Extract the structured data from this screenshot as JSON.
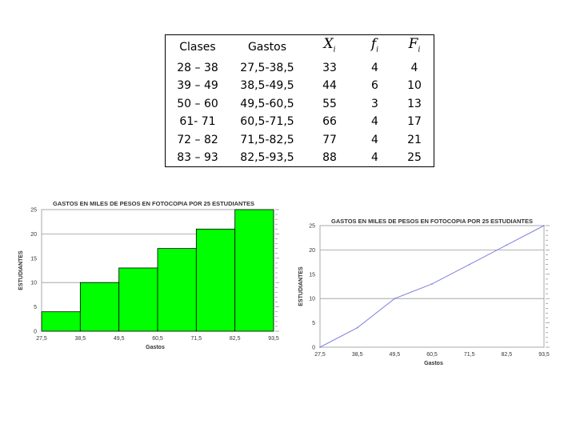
{
  "table": {
    "headers": {
      "clases": "Clases",
      "gastos": "Gastos",
      "xi_base": "X",
      "xi_sub": "i",
      "fi_base": "f",
      "fi_sub": "i",
      "Fi_base": "F",
      "Fi_sub": "i"
    },
    "rows": [
      [
        "28 – 38",
        "27,5-38,5",
        "33",
        "4",
        "4"
      ],
      [
        "39 – 49",
        "38,5-49,5",
        "44",
        "6",
        "10"
      ],
      [
        "50 – 60",
        "49,5-60,5",
        "55",
        "3",
        "13"
      ],
      [
        "61- 71",
        "60,5-71,5",
        "66",
        "4",
        "17"
      ],
      [
        "72 – 82",
        "71,5-82,5",
        "77",
        "4",
        "21"
      ],
      [
        "83 – 93",
        "82,5-93,5",
        "88",
        "4",
        "25"
      ]
    ]
  },
  "chart_data": [
    {
      "type": "bar",
      "title": "GASTOS EN MILES DE PESOS EN FOTOCOPIA POR 25 ESTUDIANTES",
      "xlabel": "Gastos",
      "ylabel": "ESTUDIANTES",
      "x_ticks": [
        "27,5",
        "38,5",
        "49,5",
        "60,5",
        "71,5",
        "82,5",
        "93,5"
      ],
      "edges": [
        27.5,
        38.5,
        49.5,
        60.5,
        71.5,
        82.5,
        93.5
      ],
      "values": [
        4,
        10,
        13,
        17,
        21,
        25
      ],
      "xlim": [
        27.5,
        93.5
      ],
      "ylim": [
        0,
        25
      ],
      "y_ticks": [
        0,
        5,
        10,
        15,
        20,
        25
      ],
      "bar_color": "#00ff00",
      "grid": true
    },
    {
      "type": "line",
      "title": "GASTOS EN MILES DE PESOS EN FOTOCOPIA POR 25 ESTUDIANTES",
      "xlabel": "Gastos",
      "ylabel": "ESTUDIANTES",
      "x_ticks": [
        "27,5",
        "38,5",
        "49,5",
        "60,5",
        "71,5",
        "82,5",
        "93,5"
      ],
      "x": [
        27.5,
        38.5,
        49.5,
        60.5,
        71.5,
        82.5,
        93.5
      ],
      "y": [
        0,
        4,
        10,
        13,
        17,
        21,
        25
      ],
      "xlim": [
        27.5,
        93.5
      ],
      "ylim": [
        0,
        25
      ],
      "y_ticks": [
        0,
        5,
        10,
        15,
        20,
        25
      ],
      "line_color": "#8080e0",
      "grid": true
    }
  ]
}
